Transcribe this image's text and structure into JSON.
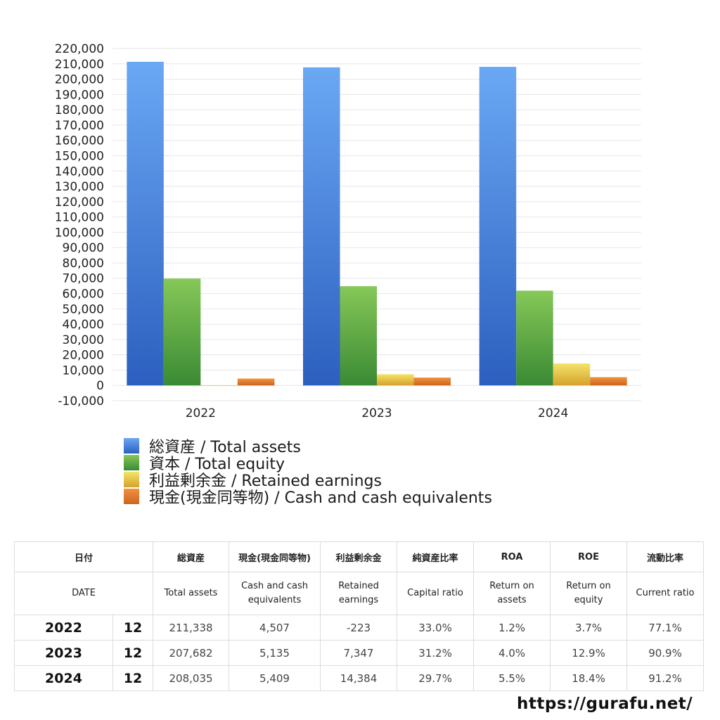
{
  "chart_data": {
    "type": "bar",
    "categories": [
      "2022",
      "2023",
      "2024"
    ],
    "series": [
      {
        "name": "総資産 / Total assets",
        "values": [
          211338,
          207682,
          208035
        ],
        "color": "#3f7fde"
      },
      {
        "name": "資本 / Total equity",
        "values": [
          69800,
          64800,
          61900
        ],
        "color": "#55a83e"
      },
      {
        "name": "利益剰余金 / Retained earnings",
        "values": [
          -223,
          7347,
          14384
        ],
        "color": "#e8c84a"
      },
      {
        "name": "現金(現金同等物) / Cash and cash equivalents",
        "values": [
          4507,
          5135,
          5409
        ],
        "color": "#e07a30"
      }
    ],
    "ylim": [
      -10000,
      220000
    ],
    "ytick_step": 10000,
    "grid": true,
    "legend": "bottom-left"
  },
  "table": {
    "header_jp": [
      "日付",
      "総資産",
      "現金(現金同等物)",
      "利益剰余金",
      "純資産比率",
      "ROA",
      "ROE",
      "流動比率"
    ],
    "header_en": [
      "DATE",
      "Total assets",
      "Cash and cash equivalents",
      "Retained earnings",
      "Capital ratio",
      "Return on assets",
      "Return on equity",
      "Current ratio"
    ],
    "rows": [
      {
        "year": "2022",
        "month": "12",
        "total_assets": "211,338",
        "cash": "4,507",
        "retained": "-223",
        "capital_ratio": "33.0%",
        "roa": "1.2%",
        "roe": "3.7%",
        "current_ratio": "77.1%"
      },
      {
        "year": "2023",
        "month": "12",
        "total_assets": "207,682",
        "cash": "5,135",
        "retained": "7,347",
        "capital_ratio": "31.2%",
        "roa": "4.0%",
        "roe": "12.9%",
        "current_ratio": "90.9%"
      },
      {
        "year": "2024",
        "month": "12",
        "total_assets": "208,035",
        "cash": "5,409",
        "retained": "14,384",
        "capital_ratio": "29.7%",
        "roa": "5.5%",
        "roe": "18.4%",
        "current_ratio": "91.2%"
      }
    ]
  },
  "footer": {
    "url": "https://gurafu.net/"
  }
}
